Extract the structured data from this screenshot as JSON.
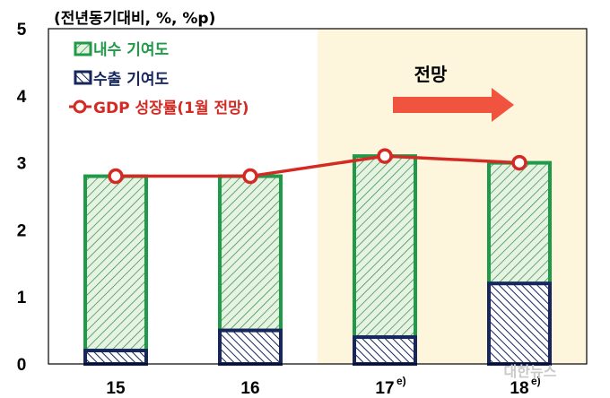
{
  "chart_data": {
    "type": "bar",
    "unit_label": "(전년동기대비, %, %p)",
    "categories": [
      "15",
      "16",
      "17",
      "18"
    ],
    "category_superscripts": [
      "",
      "",
      "e)",
      "e)"
    ],
    "yticks": [
      "0",
      "1",
      "2",
      "3",
      "4",
      "5"
    ],
    "ylim": [
      0,
      5
    ],
    "stacked": true,
    "series": [
      {
        "name": "수출 기여도",
        "kind": "bar",
        "pattern": "hatch",
        "color": "#17275e",
        "values": [
          0.2,
          0.5,
          0.4,
          1.2
        ]
      },
      {
        "name": "내수 기여도",
        "kind": "bar",
        "pattern": "hatch",
        "color": "#1f9a48",
        "values": [
          2.6,
          2.3,
          2.7,
          1.8
        ]
      },
      {
        "name": "GDP 성장률(1월 전망)",
        "kind": "line",
        "marker": "circle",
        "color": "#d42a24",
        "values": [
          2.8,
          2.8,
          3.1,
          3.0
        ]
      }
    ],
    "forecast_label": "전망",
    "forecast_start_category": "17",
    "forecast_region_color": "#fdf6dc",
    "arrow_color": "#f0533e",
    "grid": false,
    "legend_position": "top-left"
  },
  "watermark": "대한뉴스"
}
